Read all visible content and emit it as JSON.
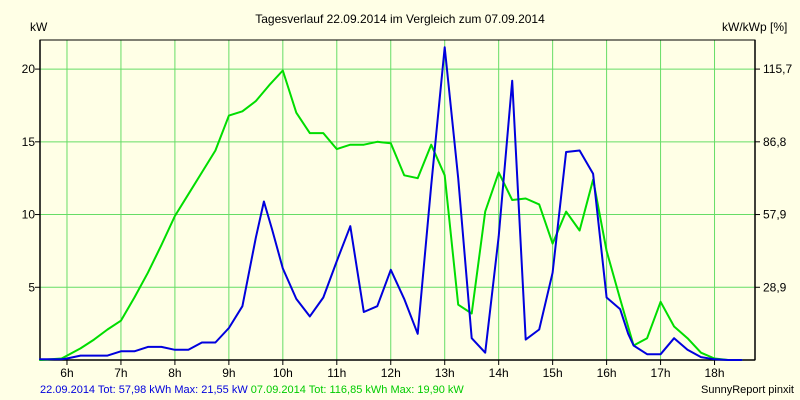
{
  "chart_data": {
    "type": "line",
    "title": "Tagesverlauf 22.09.2014 im Vergleich zum 07.09.2014",
    "ylabel": "kW",
    "y2label": "kW/kWp [%]",
    "ylim": [
      0,
      22
    ],
    "xlim": [
      5.5,
      18.75
    ],
    "yticks": [
      5,
      10,
      15,
      20
    ],
    "yticklabels": [
      "5",
      "10",
      "15",
      "20"
    ],
    "y2ticks": [
      5,
      10,
      15,
      20
    ],
    "y2ticklabels": [
      "28,9",
      "57,9",
      "86,8",
      "115,7"
    ],
    "xticks": [
      6,
      7,
      8,
      9,
      10,
      11,
      12,
      13,
      14,
      15,
      16,
      17,
      18
    ],
    "xticklabels": [
      "6h",
      "7h",
      "8h",
      "9h",
      "10h",
      "11h",
      "12h",
      "13h",
      "14h",
      "15h",
      "16h",
      "17h",
      "18h"
    ],
    "grid": true,
    "background": "#ffffe6",
    "gridcolor": "#66dd66",
    "series": [
      {
        "name": "22.09.2014",
        "color": "#0000dd",
        "x": [
          5.5,
          5.9,
          6.0,
          6.25,
          6.75,
          7.0,
          7.25,
          7.5,
          7.75,
          8.0,
          8.25,
          8.5,
          8.75,
          9.0,
          9.25,
          9.5,
          9.65,
          9.8,
          10.0,
          10.25,
          10.5,
          10.75,
          11.0,
          11.25,
          11.5,
          11.75,
          12.0,
          12.25,
          12.5,
          12.75,
          13.0,
          13.25,
          13.5,
          13.75,
          14.0,
          14.25,
          14.5,
          14.75,
          15.0,
          15.25,
          15.5,
          15.75,
          16.0,
          16.25,
          16.4,
          16.5,
          16.75,
          17.0,
          17.25,
          17.5,
          17.75,
          18.0,
          18.25,
          18.5
        ],
        "y": [
          0.05,
          0.05,
          0.1,
          0.3,
          0.3,
          0.6,
          0.6,
          0.9,
          0.9,
          0.7,
          0.7,
          1.2,
          1.2,
          2.2,
          3.7,
          8.4,
          10.9,
          9.0,
          6.3,
          4.2,
          3.0,
          4.3,
          6.8,
          9.2,
          3.3,
          3.7,
          6.2,
          4.2,
          1.8,
          12.0,
          21.5,
          12.5,
          1.5,
          0.5,
          8.5,
          19.2,
          1.4,
          2.1,
          6.0,
          14.3,
          14.4,
          12.8,
          4.3,
          3.5,
          1.8,
          1.0,
          0.4,
          0.4,
          1.5,
          0.7,
          0.2,
          0.05,
          0.0,
          0.0
        ]
      },
      {
        "name": "07.09.2014",
        "color": "#00dd00",
        "x": [
          5.5,
          5.9,
          6.0,
          6.25,
          6.5,
          6.75,
          7.0,
          7.25,
          7.5,
          7.75,
          8.0,
          8.25,
          8.5,
          8.75,
          9.0,
          9.25,
          9.5,
          9.75,
          10.0,
          10.25,
          10.5,
          10.75,
          11.0,
          11.25,
          11.5,
          11.75,
          12.0,
          12.25,
          12.5,
          12.75,
          13.0,
          13.25,
          13.5,
          13.75,
          14.0,
          14.25,
          14.5,
          14.75,
          15.0,
          15.25,
          15.5,
          15.75,
          16.0,
          16.25,
          16.5,
          16.75,
          17.0,
          17.25,
          17.5,
          17.75,
          18.0,
          18.25,
          18.5
        ],
        "y": [
          0.0,
          0.1,
          0.3,
          0.8,
          1.4,
          2.1,
          2.7,
          4.3,
          6.0,
          7.9,
          9.9,
          11.4,
          12.9,
          14.4,
          16.8,
          17.1,
          17.8,
          18.9,
          19.9,
          17.0,
          15.6,
          15.6,
          14.5,
          14.8,
          14.8,
          15.0,
          14.9,
          12.7,
          12.5,
          14.8,
          12.7,
          3.8,
          3.2,
          10.2,
          12.9,
          11.0,
          11.1,
          10.7,
          8.0,
          10.2,
          8.9,
          12.4,
          7.5,
          4.2,
          1.0,
          1.5,
          4.0,
          2.3,
          1.5,
          0.5,
          0.1,
          0.0,
          0.0
        ]
      }
    ]
  },
  "footer": {
    "blue": {
      "date": "22.09.2014",
      "total": "Tot: 57,98 kWh",
      "max": "Max: 21,55 kW",
      "color": "#0000dd"
    },
    "green": {
      "date": "07.09.2014",
      "total": "Tot: 116,85 kWh",
      "max": "Max: 19,90 kW",
      "color": "#00cc00"
    },
    "credit": "SunnyReport pinxit"
  }
}
